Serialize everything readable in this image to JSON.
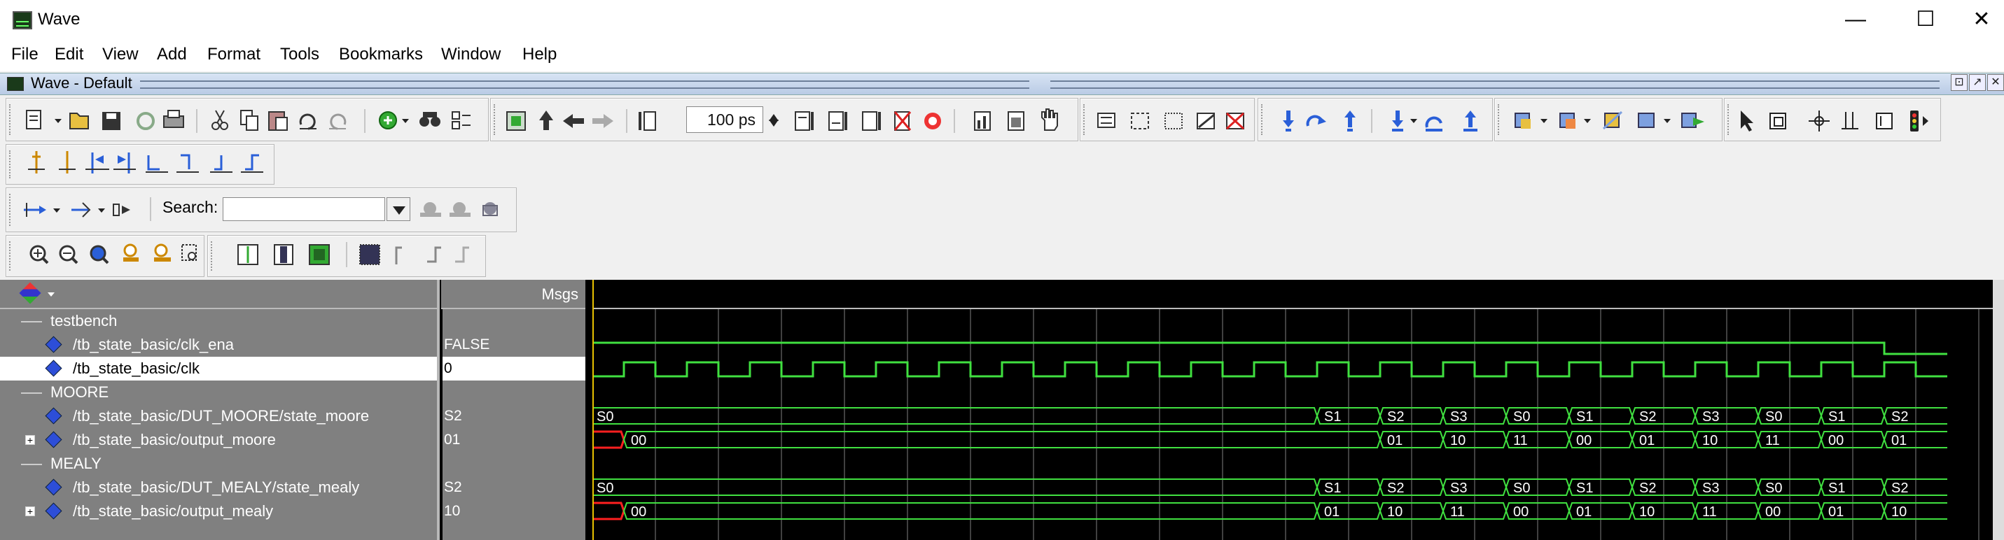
{
  "window": {
    "title": "Wave",
    "icon": "wave-app-icon",
    "controls": [
      "minimize-icon",
      "maximize-icon",
      "close-icon"
    ]
  },
  "menu": [
    "File",
    "Edit",
    "View",
    "Add",
    "Format",
    "Tools",
    "Bookmarks",
    "Window",
    "Help"
  ],
  "doc_tab": {
    "title": "Wave - Default",
    "buttons": [
      "dock-icon",
      "undock-icon",
      "close-icon"
    ]
  },
  "toolbar": {
    "zoom_value": "100 ps",
    "search_label": "Search:",
    "search_value": ""
  },
  "wave_panel": {
    "header_msgs": "Msgs",
    "rows": [
      {
        "type": "group",
        "name": "testbench"
      },
      {
        "type": "signal",
        "name": "/tb_state_basic/clk_ena",
        "value": "FALSE"
      },
      {
        "type": "signal",
        "name": "/tb_state_basic/clk",
        "value": "0",
        "selected": true
      },
      {
        "type": "group",
        "name": "MOORE"
      },
      {
        "type": "signal",
        "name": "/tb_state_basic/DUT_MOORE/state_moore",
        "value": "S2"
      },
      {
        "type": "bus",
        "name": "/tb_state_basic/output_moore",
        "value": "01"
      },
      {
        "type": "group",
        "name": "MEALY"
      },
      {
        "type": "signal",
        "name": "/tb_state_basic/DUT_MEALY/state_mealy",
        "value": "S2"
      },
      {
        "type": "bus",
        "name": "/tb_state_basic/output_mealy",
        "value": "10"
      }
    ]
  },
  "waveforms": {
    "clock_periods": 21,
    "clk_ena_high_until_period": 20.5,
    "state_moore": [
      "S0",
      "S1",
      "S2",
      "S3",
      "S0",
      "S1",
      "S2",
      "S3",
      "S0",
      "S1",
      "S2"
    ],
    "state_moore_change_periods": [
      0,
      11.5,
      12.5,
      13.5,
      14.5,
      15.5,
      16.5,
      17.5,
      18.5,
      19.5,
      20.5
    ],
    "output_moore": [
      "00",
      "01",
      "10",
      "11",
      "00",
      "01",
      "10",
      "11",
      "00",
      "01"
    ],
    "output_moore_change_periods": [
      0.5,
      12.5,
      13.5,
      14.5,
      15.5,
      16.5,
      17.5,
      18.5,
      19.5,
      20.5
    ],
    "state_mealy": [
      "S0",
      "S1",
      "S2",
      "S3",
      "S0",
      "S1",
      "S2",
      "S3",
      "S0",
      "S1",
      "S2"
    ],
    "state_mealy_change_periods": [
      0,
      11.5,
      12.5,
      13.5,
      14.5,
      15.5,
      16.5,
      17.5,
      18.5,
      19.5,
      20.5
    ],
    "output_mealy": [
      "00",
      "01",
      "10",
      "11",
      "00",
      "01",
      "10",
      "11",
      "00",
      "01",
      "10"
    ],
    "output_mealy_change_periods": [
      0.5,
      11.5,
      12.5,
      13.5,
      14.5,
      15.5,
      16.5,
      17.5,
      18.5,
      19.5,
      20.5
    ],
    "colors": {
      "wave": "#40e040",
      "undefined": "#ff2020",
      "grid": "#404040",
      "cursor": "#e8c100"
    }
  }
}
